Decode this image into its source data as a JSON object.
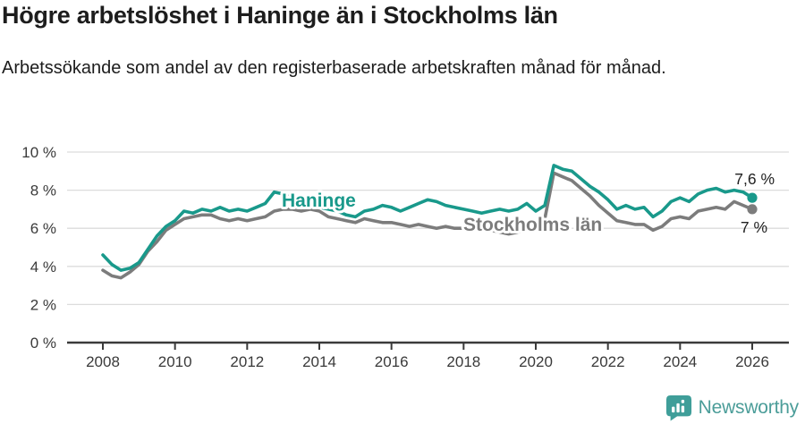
{
  "header": {
    "title": "Högre arbetslöshet i Haninge än i Stockholms län",
    "subtitle": "Arbetssökande som andel av den registerbaserade arbetskraften månad för månad."
  },
  "chart_data": {
    "type": "line",
    "title": "Högre arbetslöshet i Haninge än i Stockholms län",
    "subtitle": "Arbetssökande som andel av den registerbaserade arbetskraften månad för månad.",
    "xlabel": "",
    "ylabel": "",
    "grid": "horizontal",
    "legend_position": "inline-labels",
    "x_start": 2008,
    "x_step": 0.25,
    "x_end": 2026,
    "ylim": [
      0,
      10.5
    ],
    "yticks": [
      {
        "v": 0,
        "label": "0 %"
      },
      {
        "v": 2,
        "label": "2 %"
      },
      {
        "v": 4,
        "label": "4 %"
      },
      {
        "v": 6,
        "label": "6 %"
      },
      {
        "v": 8,
        "label": "8 %"
      },
      {
        "v": 10,
        "label": "10 %"
      }
    ],
    "xticks": [
      {
        "v": 2008,
        "label": "2008"
      },
      {
        "v": 2010,
        "label": "2010"
      },
      {
        "v": 2012,
        "label": "2012"
      },
      {
        "v": 2014,
        "label": "2014"
      },
      {
        "v": 2016,
        "label": "2016"
      },
      {
        "v": 2018,
        "label": "2018"
      },
      {
        "v": 2020,
        "label": "2020"
      },
      {
        "v": 2022,
        "label": "2022"
      },
      {
        "v": 2024,
        "label": "2024"
      },
      {
        "v": 2026,
        "label": "2026"
      }
    ],
    "series": [
      {
        "name": "Haninge",
        "color": "#19998b",
        "end_value": 7.6,
        "end_label": "7,6 %",
        "values": [
          4.6,
          4.1,
          3.8,
          3.9,
          4.2,
          4.9,
          5.6,
          6.1,
          6.4,
          6.9,
          6.8,
          7.0,
          6.9,
          7.1,
          6.9,
          7.0,
          6.9,
          7.1,
          7.3,
          7.9,
          7.8,
          7.6,
          7.4,
          7.2,
          7.1,
          7.0,
          6.9,
          6.7,
          6.6,
          6.9,
          7.0,
          7.2,
          7.1,
          6.9,
          7.1,
          7.3,
          7.5,
          7.4,
          7.2,
          7.1,
          7.0,
          6.9,
          6.8,
          6.9,
          7.0,
          6.9,
          7.0,
          7.3,
          6.9,
          7.2,
          9.3,
          9.1,
          9.0,
          8.6,
          8.2,
          7.9,
          7.5,
          7.0,
          7.2,
          7.0,
          7.1,
          6.6,
          6.9,
          7.4,
          7.6,
          7.4,
          7.8,
          8.0,
          8.1,
          7.9,
          8.0,
          7.9,
          7.6
        ]
      },
      {
        "name": "Stockholms län",
        "color": "#7c7c7c",
        "end_value": 7.0,
        "end_label": "7 %",
        "values": [
          3.8,
          3.5,
          3.4,
          3.7,
          4.1,
          4.8,
          5.3,
          5.9,
          6.2,
          6.5,
          6.6,
          6.7,
          6.7,
          6.5,
          6.4,
          6.5,
          6.4,
          6.5,
          6.6,
          6.9,
          7.0,
          7.0,
          6.9,
          7.0,
          6.9,
          6.6,
          6.5,
          6.4,
          6.3,
          6.5,
          6.4,
          6.3,
          6.3,
          6.2,
          6.1,
          6.2,
          6.1,
          6.0,
          6.1,
          6.0,
          6.0,
          5.9,
          6.0,
          5.9,
          5.8,
          5.7,
          5.8,
          6.0,
          6.1,
          6.5,
          8.9,
          8.7,
          8.5,
          8.1,
          7.7,
          7.2,
          6.8,
          6.4,
          6.3,
          6.2,
          6.2,
          5.9,
          6.1,
          6.5,
          6.6,
          6.5,
          6.9,
          7.0,
          7.1,
          7.0,
          7.4,
          7.2,
          7.0
        ]
      }
    ]
  },
  "branding": {
    "logo_text": "Newsworthy",
    "logo_color": "#4b9d99",
    "icon": "bar-chart-bubble-icon"
  }
}
